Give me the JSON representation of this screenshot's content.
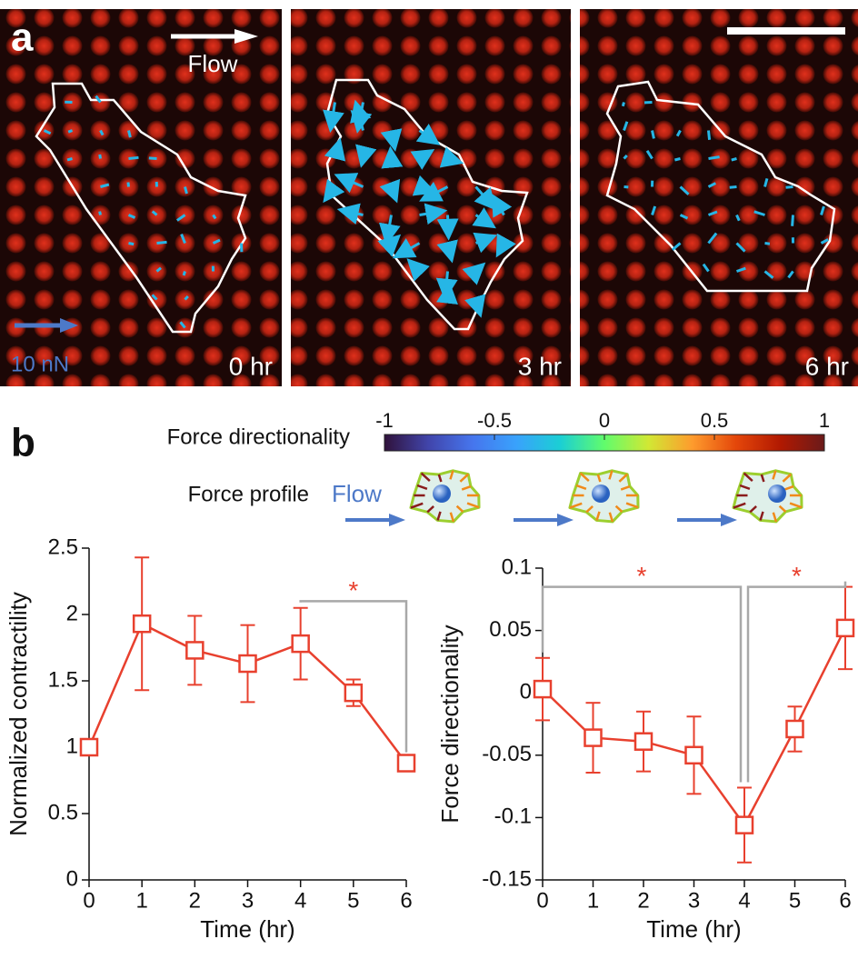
{
  "panel_a": {
    "label": "a",
    "flow_label": "Flow",
    "scale_label": "10 nN",
    "times": [
      "0 hr",
      "3 hr",
      "6 hr"
    ]
  },
  "panel_b": {
    "label": "b",
    "profile_label": "Force profile",
    "flow_label": "Flow",
    "colorbar": {
      "label": "Force directionality",
      "lim": [
        -1,
        1
      ],
      "ticks": [
        -1,
        -0.5,
        0,
        0.5,
        1
      ]
    }
  },
  "chart_data": [
    {
      "type": "line",
      "xlabel": "Time (hr)",
      "ylabel": "Normalized contractility",
      "color": "#e8402e",
      "x": [
        0,
        1,
        2,
        3,
        4,
        5,
        6
      ],
      "values": [
        1,
        1.93,
        1.73,
        1.63,
        1.78,
        1.41,
        0.88
      ],
      "errors": [
        0,
        0.5,
        0.26,
        0.29,
        0.27,
        0.1,
        0.04
      ],
      "xlim": [
        0,
        6
      ],
      "xticks": [
        0,
        1,
        2,
        3,
        4,
        5,
        6
      ],
      "ylim": [
        0,
        2.5
      ],
      "yticks": [
        0,
        0.5,
        1,
        1.5,
        2,
        2.5
      ],
      "annotations": [
        {
          "text": "*",
          "from": 4,
          "to": 6,
          "y": 2.1
        }
      ]
    },
    {
      "type": "line",
      "xlabel": "Time (hr)",
      "ylabel": "Force directionality",
      "color": "#e8402e",
      "x": [
        0,
        1,
        2,
        3,
        4,
        5,
        6
      ],
      "values": [
        0.003,
        -0.036,
        -0.039,
        -0.05,
        -0.106,
        -0.029,
        0.052
      ],
      "errors": [
        0.025,
        0.028,
        0.024,
        0.031,
        0.03,
        0.018,
        0.033
      ],
      "xlim": [
        0,
        6
      ],
      "xticks": [
        0,
        1,
        2,
        3,
        4,
        5,
        6
      ],
      "ylim": [
        -0.15,
        0.1
      ],
      "yticks": [
        -0.15,
        -0.1,
        -0.05,
        0,
        0.05,
        0.1
      ],
      "annotations": [
        {
          "text": "*",
          "from": 0,
          "to": 4,
          "y": 0.085
        },
        {
          "text": "*",
          "from": 4,
          "to": 6,
          "y": 0.085
        }
      ]
    }
  ]
}
